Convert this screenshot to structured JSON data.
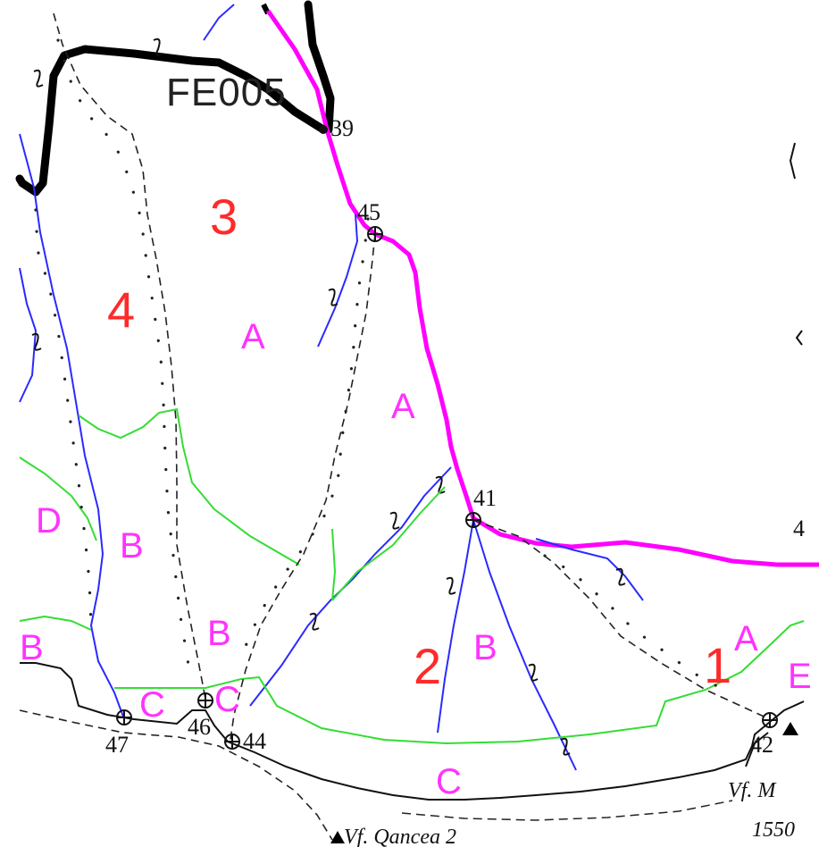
{
  "map": {
    "code_label": "FE005",
    "compartments": [
      "1",
      "2",
      "3",
      "4"
    ],
    "subunits": [
      "A",
      "A",
      "B",
      "B",
      "B",
      "B",
      "C",
      "C",
      "C",
      "D",
      "B",
      "A",
      "E"
    ],
    "points": [
      "39",
      "45",
      "41",
      "46",
      "44",
      "47",
      "42",
      "4"
    ],
    "peaks": {
      "peak_1_name": "Vf. Qancea 2",
      "peak_2_name": "Vf. M",
      "peak_2_elev": "1550"
    },
    "colors": {
      "boundary_black": "#000000",
      "road_magenta": "#ff00ff",
      "stream_blue": "#2a2aff",
      "stand_green": "#33dd33",
      "compartment_red": "#ff2a2a",
      "subunit_magenta": "#ff33ff"
    }
  }
}
